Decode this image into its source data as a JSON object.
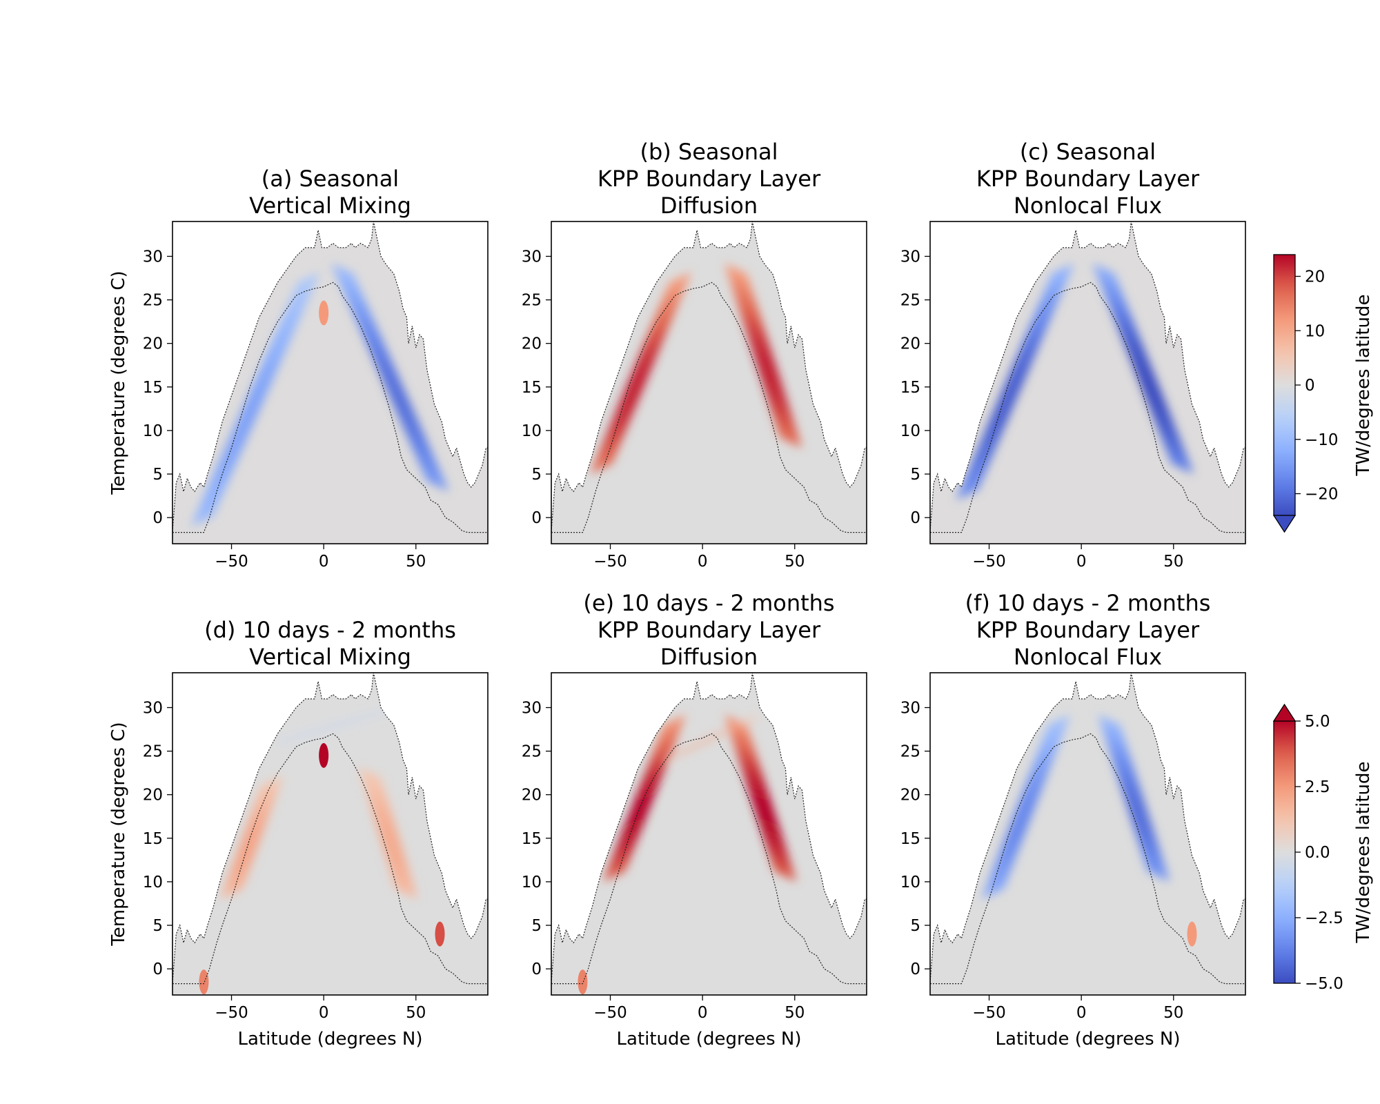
{
  "chart_data": [
    {
      "type": "heatmap",
      "panel": "a",
      "title_lines": [
        "(a) Seasonal",
        "Vertical Mixing"
      ],
      "xlabel": "",
      "ylabel": "Temperature (degrees C)",
      "xlim": [
        -82,
        89
      ],
      "ylim": [
        -3,
        34
      ],
      "xticks": [
        -50,
        0,
        50
      ],
      "yticks": [
        0,
        5,
        10,
        15,
        20,
        25,
        30
      ],
      "colorbar": "seasonal",
      "bands": [
        {
          "side": "south",
          "lat": [
            -66,
            -8
          ],
          "t": [
            -1,
            27
          ],
          "value": -14
        },
        {
          "side": "north",
          "lat": [
            62,
            10
          ],
          "t": [
            3,
            28
          ],
          "value": -20
        }
      ],
      "spots": [
        {
          "lat": 0,
          "t": 23.5,
          "value": 12
        }
      ],
      "background_value": 1
    },
    {
      "type": "heatmap",
      "panel": "b",
      "title_lines": [
        "(b) Seasonal",
        "KPP Boundary Layer",
        "Diffusion"
      ],
      "xlabel": "",
      "ylabel": "",
      "xlim": [
        -82,
        89
      ],
      "ylim": [
        -3,
        34
      ],
      "xticks": [
        -50,
        0,
        50
      ],
      "yticks": [
        0,
        5,
        10,
        15,
        20,
        25,
        30
      ],
      "colorbar": "seasonal",
      "bands": [
        {
          "side": "south",
          "lat": [
            -55,
            -12
          ],
          "t": [
            5,
            27
          ],
          "value": 22
        },
        {
          "side": "north",
          "lat": [
            48,
            18
          ],
          "t": [
            8,
            28
          ],
          "value": 22
        }
      ],
      "spots": [],
      "background_value": 0
    },
    {
      "type": "heatmap",
      "panel": "c",
      "title_lines": [
        "(c) Seasonal",
        "KPP Boundary Layer",
        "Nonlocal Flux"
      ],
      "xlabel": "",
      "ylabel": "",
      "xlim": [
        -82,
        89
      ],
      "ylim": [
        -3,
        34
      ],
      "xticks": [
        -50,
        0,
        50
      ],
      "yticks": [
        0,
        5,
        10,
        15,
        20,
        25,
        30
      ],
      "colorbar": "seasonal",
      "bands": [
        {
          "side": "south",
          "lat": [
            -62,
            -10
          ],
          "t": [
            2,
            28
          ],
          "value": -22
        },
        {
          "side": "north",
          "lat": [
            55,
            12
          ],
          "t": [
            5,
            28
          ],
          "value": -24
        }
      ],
      "spots": [],
      "background_value": 1
    },
    {
      "type": "heatmap",
      "panel": "d",
      "title_lines": [
        "(d) 10 days - 2 months",
        "Vertical Mixing"
      ],
      "xlabel": "Latitude (degrees N)",
      "ylabel": "Temperature (degrees C)",
      "xlim": [
        -82,
        89
      ],
      "ylim": [
        -3,
        34
      ],
      "xticks": [
        -50,
        0,
        50
      ],
      "yticks": [
        0,
        5,
        10,
        15,
        20,
        25,
        30
      ],
      "colorbar": "intraseasonal",
      "bands": [
        {
          "side": "south",
          "lat": [
            -50,
            -28
          ],
          "t": [
            8,
            21
          ],
          "value": 2.2
        },
        {
          "side": "north",
          "lat": [
            45,
            25
          ],
          "t": [
            8,
            22
          ],
          "value": 2.0
        },
        {
          "side": "top",
          "lat": [
            -25,
            40
          ],
          "t": [
            26,
            30
          ],
          "value": -1.0
        }
      ],
      "spots": [
        {
          "lat": 0,
          "t": 24.5,
          "value": 5
        },
        {
          "lat": 63,
          "t": 4,
          "value": 4
        },
        {
          "lat": -65,
          "t": -1.5,
          "value": 3
        }
      ],
      "background_value": 0
    },
    {
      "type": "heatmap",
      "panel": "e",
      "title_lines": [
        "(e) 10 days - 2 months",
        "KPP Boundary Layer",
        "Diffusion"
      ],
      "xlabel": "Latitude (degrees N)",
      "ylabel": "",
      "xlim": [
        -82,
        89
      ],
      "ylim": [
        -3,
        34
      ],
      "xticks": [
        -50,
        0,
        50
      ],
      "yticks": [
        0,
        5,
        10,
        15,
        20,
        25,
        30
      ],
      "colorbar": "intraseasonal",
      "bands": [
        {
          "side": "south",
          "lat": [
            -48,
            -15
          ],
          "t": [
            10,
            28
          ],
          "value": 5.0
        },
        {
          "side": "north",
          "lat": [
            45,
            18
          ],
          "t": [
            10,
            28
          ],
          "value": 5.0
        },
        {
          "side": "top",
          "lat": [
            -20,
            30
          ],
          "t": [
            24,
            29
          ],
          "value": 2.2
        }
      ],
      "spots": [
        {
          "lat": -65,
          "t": -1.5,
          "value": 3
        }
      ],
      "background_value": 0
    },
    {
      "type": "heatmap",
      "panel": "f",
      "title_lines": [
        "(f) 10 days - 2 months",
        "KPP Boundary Layer",
        "Nonlocal Flux"
      ],
      "xlabel": "Latitude (degrees N)",
      "ylabel": "",
      "xlim": [
        -82,
        89
      ],
      "ylim": [
        -3,
        34
      ],
      "xticks": [
        -50,
        0,
        50
      ],
      "yticks": [
        0,
        5,
        10,
        15,
        20,
        25,
        30
      ],
      "colorbar": "intraseasonal",
      "bands": [
        {
          "side": "south",
          "lat": [
            -48,
            -12
          ],
          "t": [
            8,
            28
          ],
          "value": -3.6
        },
        {
          "side": "north",
          "lat": [
            42,
            15
          ],
          "t": [
            10,
            28
          ],
          "value": -4.2
        }
      ],
      "spots": [
        {
          "lat": 60,
          "t": 4,
          "value": 2.5
        }
      ],
      "background_value": 0
    }
  ],
  "colorbars": {
    "seasonal": {
      "label": "TW/degrees latitude",
      "range": [
        -24,
        24
      ],
      "ticks": [
        20,
        10,
        0,
        -10,
        -20
      ],
      "tick_labels": [
        "20",
        "10",
        "0",
        "−10",
        "−20"
      ],
      "extend": "min"
    },
    "intraseasonal": {
      "label": "TW/degrees latitude",
      "range": [
        -5,
        5
      ],
      "ticks": [
        5,
        2.5,
        0,
        -2.5,
        -5
      ],
      "tick_labels": [
        "5.0",
        "2.5",
        "0.0",
        "−2.5",
        "−5.0"
      ],
      "extend": "max"
    }
  },
  "colormap": "coolwarm"
}
